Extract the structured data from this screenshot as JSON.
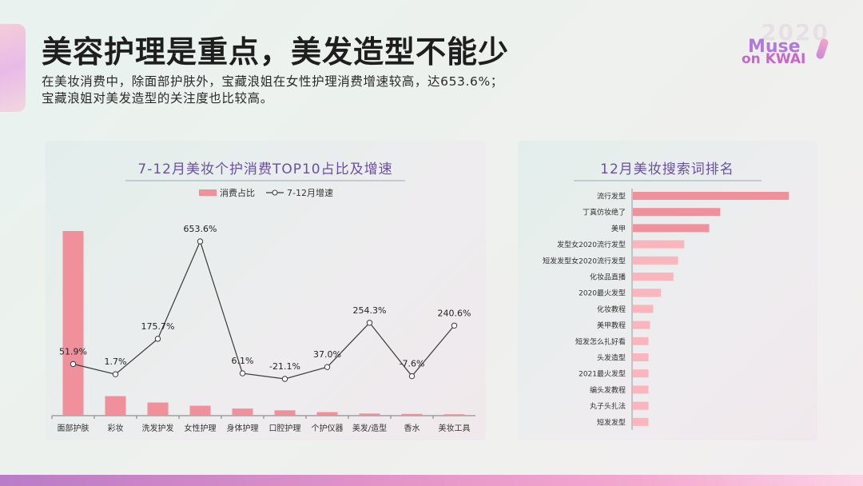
{
  "header": {
    "title": "美容护理是重点，美发造型不能少",
    "subtitle_line1": "在美妆消费中，除面部护肤外，宝藏浪姐在女性护理消费增速较高，达653.6%；",
    "subtitle_line2": "宝藏浪姐对美发造型的关注度也比较高。"
  },
  "logo": {
    "year": "2020",
    "line1": "Muse",
    "line2": "on KWAI"
  },
  "colors": {
    "bar_primary": "#f0909b",
    "bar_light": "#fbb5bd",
    "line": "#3a3a3a",
    "title_accent": "#6b4fa0"
  },
  "chart_data": [
    {
      "type": "bar",
      "title": "7-12月美妆个护消费TOP10占比及增速",
      "categories": [
        "面部护肤",
        "彩妆",
        "洗发护发",
        "女性护理",
        "身体护理",
        "口腔护理",
        "个护仪器",
        "美发/造型",
        "香水",
        "美妆工具"
      ],
      "series": [
        {
          "name": "消费占比",
          "type": "bar",
          "values": [
            0.52,
            0.055,
            0.037,
            0.028,
            0.02,
            0.015,
            0.01,
            0.006,
            0.005,
            0.004
          ]
        },
        {
          "name": "7-12月增速",
          "type": "line",
          "values": [
            51.9,
            1.7,
            175.7,
            653.6,
            6.1,
            -21.1,
            37.0,
            254.3,
            -7.6,
            240.6
          ],
          "labels": [
            "51.9%",
            "1.7%",
            "175.7%",
            "653.6%",
            "6.1%",
            "-21.1%",
            "37.0%",
            "254.3%",
            "-7.6%",
            "240.6%"
          ]
        }
      ],
      "legend": "top-center",
      "grid": false
    },
    {
      "type": "bar",
      "orientation": "horizontal",
      "title": "12月美妆搜索词排名",
      "categories": [
        "流行发型",
        "丁真仿妆绝了",
        "美甲",
        "发型女2020流行发型",
        "短发发型女2020流行发型",
        "化妆品直播",
        "2020最火发型",
        "化妆教程",
        "美甲教程",
        "短发怎么扎好看",
        "头发造型",
        "2021最火发型",
        "编头发教程",
        "丸子头扎法",
        "短发发型"
      ],
      "values": [
        100,
        56,
        49,
        33,
        29,
        26,
        18,
        13,
        11,
        10,
        10,
        10,
        10,
        10,
        10
      ],
      "grid": false
    }
  ]
}
